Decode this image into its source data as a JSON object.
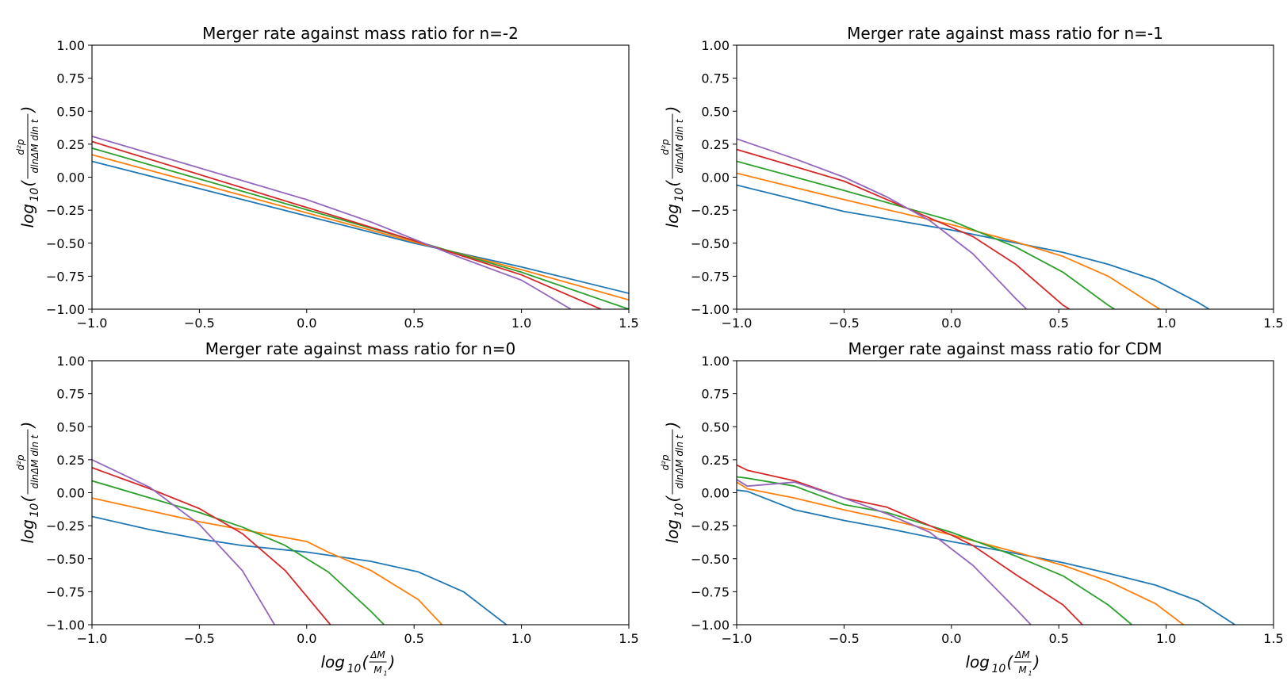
{
  "chart_data": [
    {
      "type": "line",
      "title": "Merger rate against mass ratio for n=-2",
      "xlabel": "",
      "ylabel": "log10(d²p / dlnΔM dln t)",
      "xlim": [
        -1.0,
        1.5
      ],
      "ylim": [
        -1.0,
        1.0
      ],
      "xticks": [
        "−1.0",
        "−0.5",
        "0.0",
        "0.5",
        "1.0",
        "1.5"
      ],
      "yticks": [
        "1.00",
        "0.75",
        "0.50",
        "0.25",
        "0.00",
        "−0.25",
        "−0.50",
        "−0.75",
        "−1.00"
      ],
      "grid": false,
      "series": [
        {
          "color": "#1f77b4",
          "x": [
            -1.0,
            0.5,
            1.0,
            1.5
          ],
          "y": [
            0.12,
            -0.5,
            -0.68,
            -0.88
          ]
        },
        {
          "color": "#ff7f0e",
          "x": [
            -1.0,
            0.5,
            1.0,
            1.5
          ],
          "y": [
            0.17,
            -0.49,
            -0.7,
            -0.93
          ]
        },
        {
          "color": "#2ca02c",
          "x": [
            -1.0,
            0.5,
            1.0,
            1.5
          ],
          "y": [
            0.22,
            -0.48,
            -0.72,
            -1.0
          ]
        },
        {
          "color": "#d62728",
          "x": [
            -1.0,
            0.5,
            1.0,
            1.37
          ],
          "y": [
            0.27,
            -0.48,
            -0.74,
            -1.0
          ]
        },
        {
          "color": "#9467bd",
          "x": [
            -1.0,
            -0.5,
            0.0,
            0.3,
            0.7,
            1.0,
            1.23
          ],
          "y": [
            0.31,
            0.07,
            -0.17,
            -0.34,
            -0.6,
            -0.78,
            -1.0
          ]
        }
      ]
    },
    {
      "type": "line",
      "title": "Merger rate against mass ratio for n=-1",
      "xlabel": "",
      "ylabel": "log10(d²p / dlnΔM dln t)",
      "xlim": [
        -1.0,
        1.5
      ],
      "ylim": [
        -1.0,
        1.0
      ],
      "xticks": [
        "−1.0",
        "−0.5",
        "0.0",
        "0.5",
        "1.0",
        "1.5"
      ],
      "yticks": [
        "1.00",
        "0.75",
        "0.50",
        "0.25",
        "0.00",
        "−0.25",
        "−0.50",
        "−0.75",
        "−1.00"
      ],
      "grid": false,
      "series": [
        {
          "color": "#1f77b4",
          "x": [
            -1.0,
            -0.5,
            0.0,
            0.52,
            0.73,
            0.95,
            1.15,
            1.2
          ],
          "y": [
            -0.06,
            -0.26,
            -0.4,
            -0.57,
            -0.66,
            -0.78,
            -0.95,
            -1.0
          ]
        },
        {
          "color": "#ff7f0e",
          "x": [
            -1.0,
            -0.5,
            0.0,
            0.3,
            0.52,
            0.73,
            0.97
          ],
          "y": [
            0.03,
            -0.17,
            -0.36,
            -0.49,
            -0.6,
            -0.75,
            -1.0
          ]
        },
        {
          "color": "#2ca02c",
          "x": [
            -1.0,
            -0.5,
            0.0,
            0.3,
            0.52,
            0.73,
            0.76
          ],
          "y": [
            0.12,
            -0.1,
            -0.33,
            -0.53,
            -0.72,
            -0.97,
            -1.0
          ]
        },
        {
          "color": "#d62728",
          "x": [
            -1.0,
            -0.5,
            0.1,
            0.3,
            0.52,
            0.55
          ],
          "y": [
            0.21,
            -0.03,
            -0.45,
            -0.66,
            -0.97,
            -1.0
          ]
        },
        {
          "color": "#9467bd",
          "x": [
            -1.0,
            -0.73,
            -0.5,
            -0.3,
            -0.1,
            0.1,
            0.3,
            0.35
          ],
          "y": [
            0.29,
            0.14,
            0.0,
            -0.15,
            -0.33,
            -0.58,
            -0.92,
            -1.0
          ]
        }
      ]
    },
    {
      "type": "line",
      "title": "Merger rate against mass ratio for n=0",
      "xlabel": "log10(ΔM / M1)",
      "ylabel": "log10(d²p / dlnΔM dln t)",
      "xlim": [
        -1.0,
        1.5
      ],
      "ylim": [
        -1.0,
        1.0
      ],
      "xticks": [
        "−1.0",
        "−0.5",
        "0.0",
        "0.5",
        "1.0",
        "1.5"
      ],
      "yticks": [
        "1.00",
        "0.75",
        "0.50",
        "0.25",
        "0.00",
        "−0.25",
        "−0.50",
        "−0.75",
        "−1.00"
      ],
      "grid": false,
      "series": [
        {
          "color": "#1f77b4",
          "x": [
            -1.0,
            -0.73,
            -0.5,
            -0.3,
            0.0,
            0.3,
            0.52,
            0.73,
            0.93
          ],
          "y": [
            -0.18,
            -0.28,
            -0.35,
            -0.4,
            -0.45,
            -0.52,
            -0.6,
            -0.75,
            -1.0
          ]
        },
        {
          "color": "#ff7f0e",
          "x": [
            -1.0,
            -0.5,
            0.0,
            0.1,
            0.3,
            0.52,
            0.63
          ],
          "y": [
            -0.04,
            -0.22,
            -0.37,
            -0.45,
            -0.59,
            -0.81,
            -1.0
          ]
        },
        {
          "color": "#2ca02c",
          "x": [
            -1.0,
            -0.5,
            -0.3,
            -0.1,
            0.1,
            0.3,
            0.36
          ],
          "y": [
            0.09,
            -0.15,
            -0.26,
            -0.4,
            -0.6,
            -0.9,
            -1.0
          ]
        },
        {
          "color": "#d62728",
          "x": [
            -1.0,
            -0.73,
            -0.5,
            -0.3,
            -0.1,
            0.11
          ],
          "y": [
            0.19,
            0.03,
            -0.12,
            -0.31,
            -0.59,
            -1.0
          ]
        },
        {
          "color": "#9467bd",
          "x": [
            -1.0,
            -0.73,
            -0.5,
            -0.3,
            -0.15
          ],
          "y": [
            0.25,
            0.04,
            -0.24,
            -0.59,
            -1.0
          ]
        }
      ]
    },
    {
      "type": "line",
      "title": "Merger rate against mass ratio for CDM",
      "xlabel": "log10(ΔM / M1)",
      "ylabel": "log10(d²p / dlnΔM dln t)",
      "xlim": [
        -1.0,
        1.5
      ],
      "ylim": [
        -1.0,
        1.0
      ],
      "xticks": [
        "−1.0",
        "−0.5",
        "0.0",
        "0.5",
        "1.0",
        "1.5"
      ],
      "yticks": [
        "1.00",
        "0.75",
        "0.50",
        "0.25",
        "0.00",
        "−0.25",
        "−0.50",
        "−0.75",
        "−1.00"
      ],
      "grid": false,
      "series": [
        {
          "color": "#1f77b4",
          "x": [
            -1.0,
            -0.95,
            -0.73,
            -0.5,
            -0.3,
            0.0,
            0.3,
            0.52,
            0.73,
            0.95,
            1.15,
            1.32
          ],
          "y": [
            0.02,
            0.01,
            -0.13,
            -0.21,
            -0.27,
            -0.37,
            -0.46,
            -0.53,
            -0.61,
            -0.7,
            -0.82,
            -1.0
          ]
        },
        {
          "color": "#ff7f0e",
          "x": [
            -1.0,
            -0.95,
            -0.73,
            -0.5,
            -0.3,
            0.0,
            0.3,
            0.52,
            0.73,
            0.95,
            1.08
          ],
          "y": [
            0.08,
            0.03,
            -0.04,
            -0.13,
            -0.2,
            -0.32,
            -0.45,
            -0.55,
            -0.67,
            -0.84,
            -1.0
          ]
        },
        {
          "color": "#2ca02c",
          "x": [
            -1.0,
            -0.95,
            -0.73,
            -0.5,
            -0.3,
            0.0,
            0.1,
            0.3,
            0.52,
            0.73,
            0.84
          ],
          "y": [
            0.12,
            0.11,
            0.05,
            -0.09,
            -0.15,
            -0.3,
            -0.36,
            -0.48,
            -0.63,
            -0.85,
            -1.0
          ]
        },
        {
          "color": "#d62728",
          "x": [
            -1.0,
            -0.95,
            -0.73,
            -0.5,
            -0.3,
            0.0,
            0.1,
            0.3,
            0.52,
            0.61
          ],
          "y": [
            0.21,
            0.17,
            0.09,
            -0.04,
            -0.11,
            -0.32,
            -0.4,
            -0.62,
            -0.85,
            -1.0
          ]
        },
        {
          "color": "#9467bd",
          "x": [
            -1.0,
            -0.95,
            -0.73,
            -0.5,
            -0.3,
            -0.1,
            0.1,
            0.3,
            0.37
          ],
          "y": [
            0.1,
            0.05,
            0.08,
            -0.04,
            -0.16,
            -0.3,
            -0.55,
            -0.88,
            -1.0
          ]
        }
      ]
    }
  ]
}
